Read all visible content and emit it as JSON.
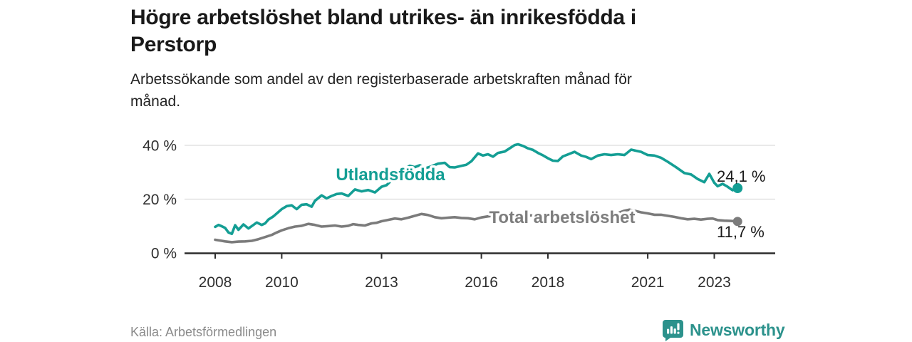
{
  "header": {
    "title_line1": "Högre arbetslöshet bland utrikes- än inrikesfödda i",
    "title_line2": "Perstorp",
    "subtitle_line1": "Arbetssökande som andel av den registerbaserade arbetskraften månad för",
    "subtitle_line2": "månad."
  },
  "footer": {
    "source": "Källa: Arbetsförmedlingen",
    "logo_text": "Newsworthy"
  },
  "colors": {
    "teal_line": "#149E94",
    "gray_line": "#7B7B7B",
    "gray_label": "#7D7D7D",
    "value_label": "#1A1A1A",
    "axis_text": "#2F2F2F",
    "axis_line": "#2D2D2D",
    "gridline": "#DCDCDC",
    "logo_teal": "#2C928C"
  },
  "chart_data": {
    "type": "line",
    "title": "Högre arbetslöshet bland utrikes- än inrikesfödda i Perstorp",
    "subtitle": "Arbetssökande som andel av den registerbaserade arbetskraften månad för månad.",
    "source": "Källa: Arbetsförmedlingen",
    "xlabel": "",
    "ylabel": "",
    "xlim": [
      2007.85,
      2024.1
    ],
    "ylim": [
      0,
      42
    ],
    "grid": "horizontal",
    "legend_position": "inline-labels",
    "y_ticks": [
      {
        "value": 0,
        "label": "0 %"
      },
      {
        "value": 20,
        "label": "20 %"
      },
      {
        "value": 40,
        "label": "40 %"
      }
    ],
    "x_ticks": [
      {
        "value": 2008,
        "label": "2008"
      },
      {
        "value": 2010,
        "label": "2010"
      },
      {
        "value": 2013,
        "label": "2013"
      },
      {
        "value": 2016,
        "label": "2016"
      },
      {
        "value": 2018,
        "label": "2018"
      },
      {
        "value": 2021,
        "label": "2021"
      },
      {
        "value": 2023,
        "label": "2023"
      }
    ],
    "series": [
      {
        "name": "Utlandsfödda",
        "color": "#149E94",
        "end_label": "24,1 %",
        "end_value": 24.1,
        "x": [
          2008.0,
          2008.1,
          2008.2,
          2008.3,
          2008.4,
          2008.5,
          2008.6,
          2008.7,
          2008.85,
          2009.0,
          2009.1,
          2009.25,
          2009.4,
          2009.5,
          2009.6,
          2009.75,
          2009.9,
          2010.0,
          2010.15,
          2010.3,
          2010.45,
          2010.6,
          2010.75,
          2010.9,
          2011.0,
          2011.2,
          2011.35,
          2011.5,
          2011.65,
          2011.8,
          2012.0,
          2012.2,
          2012.4,
          2012.6,
          2012.8,
          2013.0,
          2013.15,
          2013.3,
          2013.5,
          2013.7,
          2013.85,
          2014.0,
          2014.15,
          2014.3,
          2014.5,
          2014.7,
          2014.9,
          2015.05,
          2015.2,
          2015.4,
          2015.55,
          2015.7,
          2015.9,
          2016.05,
          2016.2,
          2016.35,
          2016.5,
          2016.7,
          2016.85,
          2017.0,
          2017.1,
          2017.25,
          2017.4,
          2017.55,
          2017.7,
          2017.85,
          2018.0,
          2018.15,
          2018.3,
          2018.45,
          2018.6,
          2018.8,
          2019.0,
          2019.15,
          2019.3,
          2019.5,
          2019.7,
          2019.9,
          2020.1,
          2020.3,
          2020.5,
          2020.65,
          2020.8,
          2021.0,
          2021.2,
          2021.4,
          2021.6,
          2021.85,
          2022.1,
          2022.3,
          2022.5,
          2022.7,
          2022.85,
          2023.0,
          2023.1,
          2023.25,
          2023.4,
          2023.55,
          2023.7
        ],
        "values": [
          9.7,
          10.4,
          9.9,
          9.3,
          7.6,
          7.1,
          10.3,
          8.6,
          10.6,
          9.1,
          10.0,
          11.3,
          10.4,
          11.0,
          12.4,
          13.6,
          15.2,
          16.3,
          17.4,
          17.7,
          16.3,
          17.9,
          18.1,
          17.2,
          19.4,
          21.4,
          20.3,
          21.2,
          21.9,
          22.1,
          21.2,
          23.6,
          22.9,
          23.4,
          22.5,
          24.6,
          25.2,
          27.0,
          29.3,
          31.2,
          32.4,
          31.9,
          32.6,
          31.4,
          32.2,
          33.2,
          33.5,
          31.9,
          31.8,
          32.4,
          32.8,
          34.1,
          37.0,
          36.2,
          36.7,
          35.8,
          37.2,
          37.7,
          38.9,
          40.1,
          40.4,
          39.8,
          38.9,
          38.3,
          37.2,
          36.3,
          35.2,
          34.3,
          34.2,
          35.9,
          36.6,
          37.6,
          36.2,
          35.7,
          34.9,
          36.2,
          36.7,
          36.4,
          36.7,
          36.4,
          38.4,
          38.0,
          37.6,
          36.4,
          36.2,
          35.4,
          33.9,
          31.9,
          29.7,
          29.2,
          27.5,
          26.3,
          29.4,
          26.1,
          24.8,
          25.7,
          24.6,
          23.3,
          24.1
        ]
      },
      {
        "name": "Total arbetslöshet",
        "color": "#7B7B7B",
        "end_label": "11,7 %",
        "end_value": 11.7,
        "x": [
          2008.0,
          2008.15,
          2008.3,
          2008.5,
          2008.7,
          2008.9,
          2009.1,
          2009.3,
          2009.5,
          2009.7,
          2009.85,
          2010.0,
          2010.2,
          2010.4,
          2010.6,
          2010.8,
          2011.0,
          2011.2,
          2011.4,
          2011.6,
          2011.8,
          2012.0,
          2012.15,
          2012.3,
          2012.5,
          2012.7,
          2012.85,
          2013.0,
          2013.2,
          2013.4,
          2013.6,
          2013.8,
          2014.0,
          2014.2,
          2014.4,
          2014.6,
          2014.8,
          2015.0,
          2015.2,
          2015.4,
          2015.6,
          2015.8,
          2016.0,
          2016.2,
          2016.4,
          2016.7,
          2017.0,
          2017.3,
          2017.6,
          2017.9,
          2018.2,
          2018.5,
          2018.8,
          2019.1,
          2019.4,
          2019.7,
          2019.9,
          2020.1,
          2020.3,
          2020.45,
          2020.6,
          2020.8,
          2021.0,
          2021.2,
          2021.4,
          2021.6,
          2021.8,
          2022.0,
          2022.2,
          2022.4,
          2022.6,
          2022.8,
          2022.95,
          2023.1,
          2023.3,
          2023.5,
          2023.7
        ],
        "values": [
          4.9,
          4.6,
          4.3,
          4.0,
          4.2,
          4.3,
          4.5,
          5.1,
          5.9,
          6.7,
          7.6,
          8.4,
          9.2,
          9.8,
          10.1,
          10.8,
          10.4,
          9.8,
          10.0,
          10.2,
          9.8,
          10.1,
          10.7,
          10.4,
          10.2,
          11.0,
          11.2,
          11.8,
          12.3,
          12.8,
          12.5,
          13.1,
          13.8,
          14.5,
          14.1,
          13.3,
          12.9,
          13.1,
          13.3,
          13.0,
          12.9,
          12.5,
          13.2,
          13.6,
          13.9,
          13.6,
          13.8,
          14.0,
          13.9,
          13.6,
          13.4,
          13.5,
          13.3,
          13.2,
          13.4,
          13.6,
          14.0,
          14.8,
          15.7,
          16.1,
          15.7,
          15.1,
          14.7,
          14.2,
          14.2,
          13.8,
          13.4,
          12.9,
          12.5,
          12.7,
          12.4,
          12.7,
          12.8,
          12.2,
          12.0,
          11.9,
          11.7
        ]
      }
    ]
  }
}
